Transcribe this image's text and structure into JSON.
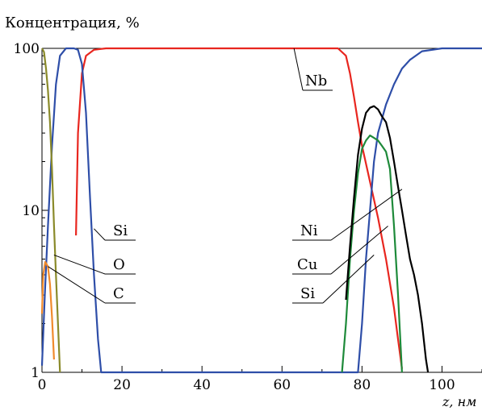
{
  "chart_data": {
    "type": "line",
    "title": "",
    "ylabel": "Концентрация, %",
    "xlabel": "z, нм",
    "yscale": "log",
    "xlim": [
      0,
      110
    ],
    "ylim": [
      1,
      100
    ],
    "grid": false,
    "legend": "none",
    "x_ticks": [
      "0",
      "20",
      "40",
      "60",
      "80",
      "100"
    ],
    "y_ticks": [
      "1",
      "10",
      "100"
    ],
    "series": [
      {
        "color": "#e8261f",
        "points": [
          [
            8.5,
            7
          ],
          [
            9,
            30
          ],
          [
            10,
            70
          ],
          [
            11,
            90
          ],
          [
            13,
            98
          ],
          [
            16,
            100
          ],
          [
            40,
            100
          ],
          [
            60,
            100
          ],
          [
            74,
            100
          ],
          [
            76,
            90
          ],
          [
            77,
            70
          ],
          [
            78,
            50
          ],
          [
            79,
            35
          ],
          [
            80,
            25
          ],
          [
            82,
            15
          ],
          [
            84,
            9
          ],
          [
            86,
            5
          ],
          [
            88,
            2.5
          ],
          [
            89,
            1.6
          ],
          [
            90,
            1.05
          ]
        ]
      },
      {
        "color": "#2e4ea8",
        "points": [
          [
            0,
            1.1
          ],
          [
            0.7,
            3
          ],
          [
            1.5,
            8
          ],
          [
            2.5,
            25
          ],
          [
            3.5,
            60
          ],
          [
            4.5,
            90
          ],
          [
            6,
            100
          ],
          [
            8,
            100
          ],
          [
            9,
            98
          ],
          [
            10,
            80
          ],
          [
            11,
            40
          ],
          [
            12,
            12
          ],
          [
            13,
            4
          ],
          [
            14,
            1.6
          ],
          [
            14.8,
            1
          ],
          [
            79,
            1
          ],
          [
            80,
            2
          ],
          [
            81,
            5
          ],
          [
            82,
            10
          ],
          [
            83,
            20
          ],
          [
            84,
            30
          ],
          [
            86,
            45
          ],
          [
            88,
            60
          ],
          [
            90,
            75
          ],
          [
            92,
            85
          ],
          [
            95,
            96
          ],
          [
            100,
            100
          ],
          [
            110,
            100
          ]
        ]
      },
      {
        "color": "#8a8a2a",
        "points": [
          [
            0,
            100
          ],
          [
            0.5,
            95
          ],
          [
            1,
            75
          ],
          [
            1.5,
            55
          ],
          [
            2,
            35
          ],
          [
            2.5,
            18
          ],
          [
            3,
            8
          ],
          [
            3.5,
            4
          ],
          [
            4,
            2
          ],
          [
            4.5,
            1
          ]
        ]
      },
      {
        "color": "#f08a2c",
        "points": [
          [
            0,
            2.3
          ],
          [
            0.3,
            4
          ],
          [
            0.8,
            4.8
          ],
          [
            1.5,
            4.5
          ],
          [
            2,
            3.5
          ],
          [
            2.5,
            2.2
          ],
          [
            3,
            1.2
          ]
        ]
      },
      {
        "color": "#1e8a3a",
        "points": [
          [
            75,
            1
          ],
          [
            76,
            2
          ],
          [
            77,
            5
          ],
          [
            78,
            10
          ],
          [
            79,
            17
          ],
          [
            80,
            24
          ],
          [
            81,
            27
          ],
          [
            82,
            29
          ],
          [
            83,
            28
          ],
          [
            84,
            27
          ],
          [
            85,
            25
          ],
          [
            86,
            23
          ],
          [
            87,
            18
          ],
          [
            88,
            8
          ],
          [
            89,
            3
          ],
          [
            90,
            1
          ]
        ]
      },
      {
        "color": "#000000",
        "points": [
          [
            76,
            2.8
          ],
          [
            77,
            6
          ],
          [
            78,
            12
          ],
          [
            79,
            22
          ],
          [
            80,
            32
          ],
          [
            81,
            40
          ],
          [
            82,
            43
          ],
          [
            83,
            44
          ],
          [
            84,
            42
          ],
          [
            85,
            38
          ],
          [
            86,
            35
          ],
          [
            87,
            28
          ],
          [
            88,
            20
          ],
          [
            89,
            14
          ],
          [
            90,
            10
          ],
          [
            91,
            7
          ],
          [
            92,
            5
          ],
          [
            93,
            4
          ],
          [
            94,
            3
          ],
          [
            95,
            2
          ],
          [
            96,
            1.2
          ],
          [
            96.5,
            1
          ]
        ]
      }
    ],
    "annotations": [
      {
        "text": "Nb",
        "x": 63,
        "y": 100
      },
      {
        "text": "Si",
        "x": 13,
        "y": 7.7
      },
      {
        "text": "O",
        "x": 3,
        "y": 5.3
      },
      {
        "text": "C",
        "x": 1.5,
        "y": 4.5
      },
      {
        "text": "Ni",
        "x": 90,
        "y": 13.5
      },
      {
        "text": "Cu",
        "x": 86.5,
        "y": 8
      },
      {
        "text": "Si",
        "x": 83,
        "y": 5.3
      }
    ]
  }
}
